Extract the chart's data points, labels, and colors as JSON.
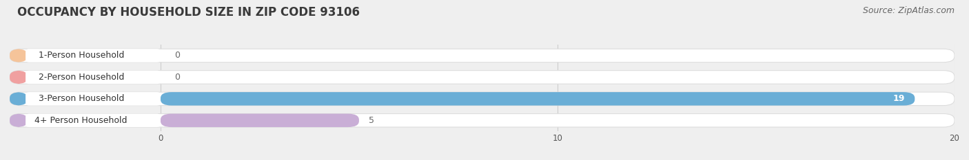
{
  "title": "OCCUPANCY BY HOUSEHOLD SIZE IN ZIP CODE 93106",
  "source": "Source: ZipAtlas.com",
  "categories": [
    "1-Person Household",
    "2-Person Household",
    "3-Person Household",
    "4+ Person Household"
  ],
  "values": [
    0,
    0,
    19,
    5
  ],
  "bar_colors": [
    "#f5c49a",
    "#f0a0a0",
    "#6aaed6",
    "#c9aed6"
  ],
  "xlim": [
    0,
    20
  ],
  "xticks": [
    0,
    10,
    20
  ],
  "bar_height": 0.62,
  "background_color": "#efefef",
  "title_fontsize": 12,
  "source_fontsize": 9,
  "label_fontsize": 9,
  "value_fontsize": 9
}
